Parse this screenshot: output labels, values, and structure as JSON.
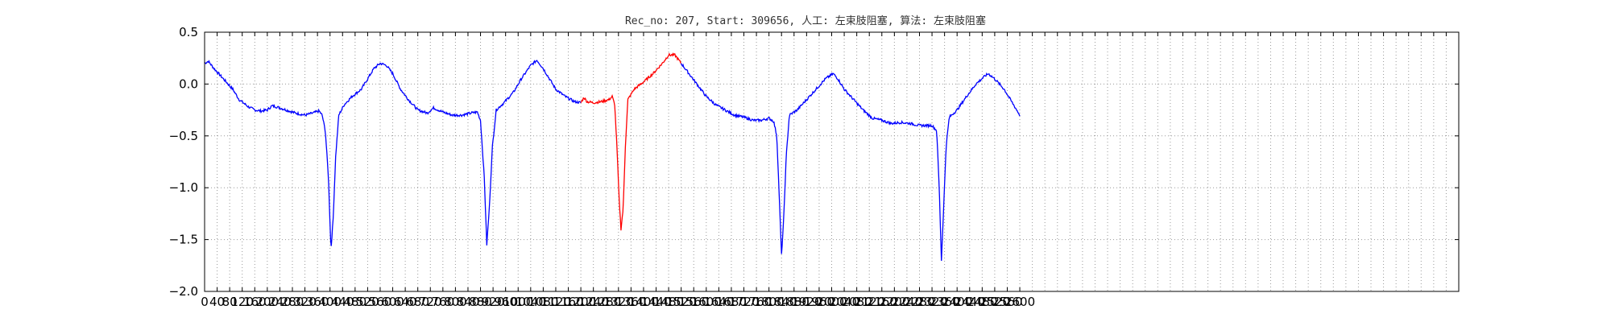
{
  "chart_data": {
    "type": "line",
    "title": "Rec_no: 207, Start: 309656, 人工: 左束肢阻塞, 算法: 左束肢阻塞",
    "xlabel": "",
    "ylabel": "",
    "xlim": [
      0,
      4000
    ],
    "ylim": [
      -2.0,
      0.5
    ],
    "grid": true,
    "grid_style": "dotted",
    "x_ticks_step": 40,
    "y_ticks": [
      0.5,
      0.0,
      -0.5,
      -1.0,
      -1.5,
      -2.0
    ],
    "y_tick_labels": [
      "0.5",
      "0.0",
      "−0.5",
      "−1.0",
      "−1.5",
      "−2.0"
    ],
    "x_tick_labels": [
      "0",
      "40",
      "80",
      "120",
      "160",
      "200",
      "240",
      "280",
      "320",
      "360",
      "400",
      "440",
      "480",
      "520",
      "560",
      "600",
      "640",
      "680",
      "720",
      "760",
      "800",
      "840",
      "880",
      "920",
      "960",
      "1000",
      "1040",
      "1080",
      "1120",
      "1160",
      "1200",
      "1240",
      "1280",
      "1320",
      "1360",
      "1400",
      "1440",
      "1480",
      "1520",
      "1560",
      "1600",
      "1640",
      "1680",
      "1720",
      "1760",
      "1800",
      "1840",
      "1880",
      "1920",
      "1960",
      "2000",
      "2040",
      "2080",
      "2120",
      "2160",
      "2200",
      "2240",
      "2280",
      "2320",
      "2360",
      "2400",
      "2440",
      "2480",
      "2520",
      "2560",
      "2600"
    ],
    "x_data_max": 2600,
    "colors": {
      "normal": "#0000ff",
      "highlight": "#ff0000",
      "grid": "#999999"
    },
    "highlight_range": [
      1200,
      1520
    ],
    "series_name": "",
    "keypoints": [
      [
        0,
        0.2
      ],
      [
        12,
        0.22
      ],
      [
        30,
        0.15
      ],
      [
        60,
        0.05
      ],
      [
        90,
        -0.05
      ],
      [
        110,
        -0.15
      ],
      [
        140,
        -0.22
      ],
      [
        160,
        -0.25
      ],
      [
        180,
        -0.26
      ],
      [
        200,
        -0.25
      ],
      [
        215,
        -0.21
      ],
      [
        230,
        -0.22
      ],
      [
        260,
        -0.25
      ],
      [
        290,
        -0.28
      ],
      [
        320,
        -0.3
      ],
      [
        345,
        -0.28
      ],
      [
        365,
        -0.26
      ],
      [
        375,
        -0.3
      ],
      [
        385,
        -0.45
      ],
      [
        395,
        -0.9
      ],
      [
        403,
        -1.6
      ],
      [
        410,
        -1.3
      ],
      [
        418,
        -0.7
      ],
      [
        428,
        -0.3
      ],
      [
        445,
        -0.2
      ],
      [
        470,
        -0.12
      ],
      [
        500,
        -0.05
      ],
      [
        520,
        0.05
      ],
      [
        540,
        0.15
      ],
      [
        560,
        0.2
      ],
      [
        580,
        0.18
      ],
      [
        600,
        0.1
      ],
      [
        625,
        -0.05
      ],
      [
        650,
        -0.15
      ],
      [
        680,
        -0.25
      ],
      [
        710,
        -0.28
      ],
      [
        730,
        -0.23
      ],
      [
        760,
        -0.27
      ],
      [
        790,
        -0.3
      ],
      [
        820,
        -0.3
      ],
      [
        850,
        -0.28
      ],
      [
        870,
        -0.27
      ],
      [
        880,
        -0.35
      ],
      [
        892,
        -0.9
      ],
      [
        900,
        -1.55
      ],
      [
        908,
        -1.2
      ],
      [
        918,
        -0.6
      ],
      [
        930,
        -0.25
      ],
      [
        955,
        -0.18
      ],
      [
        985,
        -0.08
      ],
      [
        1010,
        0.05
      ],
      [
        1040,
        0.18
      ],
      [
        1060,
        0.23
      ],
      [
        1080,
        0.15
      ],
      [
        1100,
        0.05
      ],
      [
        1120,
        -0.05
      ],
      [
        1150,
        -0.12
      ],
      [
        1180,
        -0.17
      ],
      [
        1200,
        -0.18
      ],
      [
        1210,
        -0.13
      ],
      [
        1220,
        -0.17
      ],
      [
        1240,
        -0.18
      ],
      [
        1265,
        -0.17
      ],
      [
        1290,
        -0.15
      ],
      [
        1300,
        -0.12
      ],
      [
        1308,
        -0.2
      ],
      [
        1315,
        -0.6
      ],
      [
        1322,
        -1.1
      ],
      [
        1328,
        -1.4
      ],
      [
        1335,
        -1.2
      ],
      [
        1342,
        -0.6
      ],
      [
        1350,
        -0.15
      ],
      [
        1370,
        -0.05
      ],
      [
        1400,
        0.02
      ],
      [
        1430,
        0.1
      ],
      [
        1460,
        0.2
      ],
      [
        1480,
        0.28
      ],
      [
        1500,
        0.28
      ],
      [
        1520,
        0.2
      ],
      [
        1545,
        0.1
      ],
      [
        1570,
        0.0
      ],
      [
        1600,
        -0.12
      ],
      [
        1630,
        -0.2
      ],
      [
        1660,
        -0.25
      ],
      [
        1690,
        -0.3
      ],
      [
        1720,
        -0.32
      ],
      [
        1750,
        -0.35
      ],
      [
        1775,
        -0.35
      ],
      [
        1800,
        -0.33
      ],
      [
        1815,
        -0.36
      ],
      [
        1825,
        -0.5
      ],
      [
        1833,
        -1.1
      ],
      [
        1840,
        -1.65
      ],
      [
        1847,
        -1.3
      ],
      [
        1855,
        -0.7
      ],
      [
        1865,
        -0.3
      ],
      [
        1890,
        -0.25
      ],
      [
        1920,
        -0.15
      ],
      [
        1950,
        -0.05
      ],
      [
        1980,
        0.05
      ],
      [
        2005,
        0.1
      ],
      [
        2020,
        0.05
      ],
      [
        2040,
        -0.05
      ],
      [
        2070,
        -0.15
      ],
      [
        2100,
        -0.25
      ],
      [
        2130,
        -0.33
      ],
      [
        2160,
        -0.35
      ],
      [
        2190,
        -0.38
      ],
      [
        2220,
        -0.37
      ],
      [
        2250,
        -0.38
      ],
      [
        2280,
        -0.4
      ],
      [
        2300,
        -0.4
      ],
      [
        2320,
        -0.4
      ],
      [
        2335,
        -0.45
      ],
      [
        2343,
        -1.0
      ],
      [
        2350,
        -1.7
      ],
      [
        2357,
        -1.2
      ],
      [
        2365,
        -0.6
      ],
      [
        2375,
        -0.32
      ],
      [
        2400,
        -0.25
      ],
      [
        2430,
        -0.12
      ],
      [
        2460,
        0.0
      ],
      [
        2490,
        0.08
      ],
      [
        2500,
        0.1
      ],
      [
        2520,
        0.05
      ],
      [
        2550,
        -0.05
      ],
      [
        2580,
        -0.2
      ],
      [
        2600,
        -0.3
      ]
    ]
  }
}
